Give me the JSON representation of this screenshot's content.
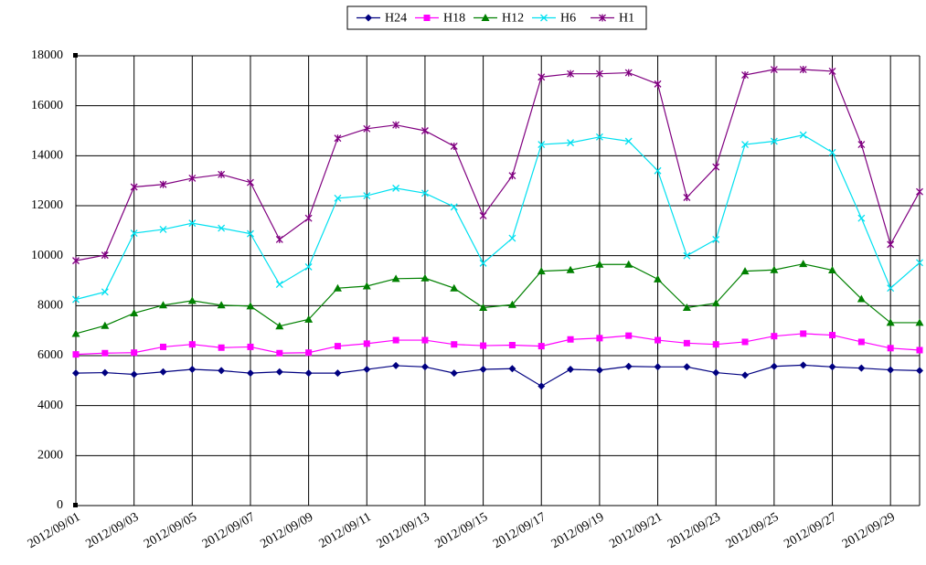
{
  "chart_data": {
    "type": "line",
    "categories": [
      "2012/09/01",
      null,
      "2012/09/03",
      null,
      "2012/09/05",
      null,
      "2012/09/07",
      null,
      "2012/09/09",
      null,
      "2012/09/11",
      null,
      "2012/09/13",
      null,
      "2012/09/15",
      null,
      "2012/09/17",
      null,
      "2012/09/19",
      null,
      "2012/09/21",
      null,
      "2012/09/23",
      null,
      "2012/09/25",
      null,
      "2012/09/27",
      null,
      "2012/09/29",
      null
    ],
    "series": [
      {
        "name": "H24",
        "color": "#000080",
        "marker": "diamond",
        "values": [
          5300,
          5320,
          5250,
          5350,
          5450,
          5400,
          5300,
          5350,
          5300,
          5300,
          5450,
          5600,
          5550,
          5300,
          5450,
          5480,
          4780,
          5450,
          5420,
          5570,
          5550,
          5550,
          5320,
          5220,
          5570,
          5620,
          5550,
          5500,
          5430,
          5400
        ]
      },
      {
        "name": "H18",
        "color": "#ff00ff",
        "marker": "square",
        "values": [
          6050,
          6100,
          6120,
          6350,
          6450,
          6320,
          6350,
          6100,
          6120,
          6380,
          6480,
          6620,
          6620,
          6450,
          6400,
          6420,
          6380,
          6650,
          6700,
          6800,
          6620,
          6500,
          6450,
          6550,
          6780,
          6880,
          6820,
          6550,
          6300,
          6220
        ]
      },
      {
        "name": "H12",
        "color": "#008000",
        "marker": "triangle",
        "values": [
          6880,
          7200,
          7700,
          8020,
          8200,
          8020,
          7980,
          7180,
          7450,
          8700,
          8780,
          9080,
          9100,
          8700,
          7920,
          8040,
          9380,
          9430,
          9650,
          9650,
          9060,
          7920,
          8100,
          9380,
          9430,
          9670,
          9420,
          8270,
          7320,
          7320
        ]
      },
      {
        "name": "H6",
        "color": "#00e0f0",
        "marker": "x",
        "values": [
          8250,
          8550,
          10900,
          11050,
          11300,
          11100,
          10880,
          8850,
          9550,
          12300,
          12400,
          12700,
          12500,
          11950,
          9700,
          10700,
          14450,
          14520,
          14750,
          14580,
          13400,
          10000,
          10650,
          14450,
          14580,
          14830,
          14130,
          11500,
          8700,
          9720
        ]
      },
      {
        "name": "H1",
        "color": "#800080",
        "marker": "star",
        "values": [
          9800,
          10020,
          12750,
          12850,
          13100,
          13250,
          12930,
          10650,
          11500,
          14700,
          15080,
          15230,
          15000,
          14380,
          11600,
          13200,
          17150,
          17280,
          17280,
          17320,
          16870,
          12330,
          13550,
          17230,
          17450,
          17450,
          17380,
          14450,
          10450,
          12560
        ]
      }
    ],
    "ylim": [
      0,
      18000
    ],
    "yticks": [
      0,
      2000,
      4000,
      6000,
      8000,
      10000,
      12000,
      14000,
      16000,
      18000
    ],
    "grid": true,
    "legend": "top"
  }
}
